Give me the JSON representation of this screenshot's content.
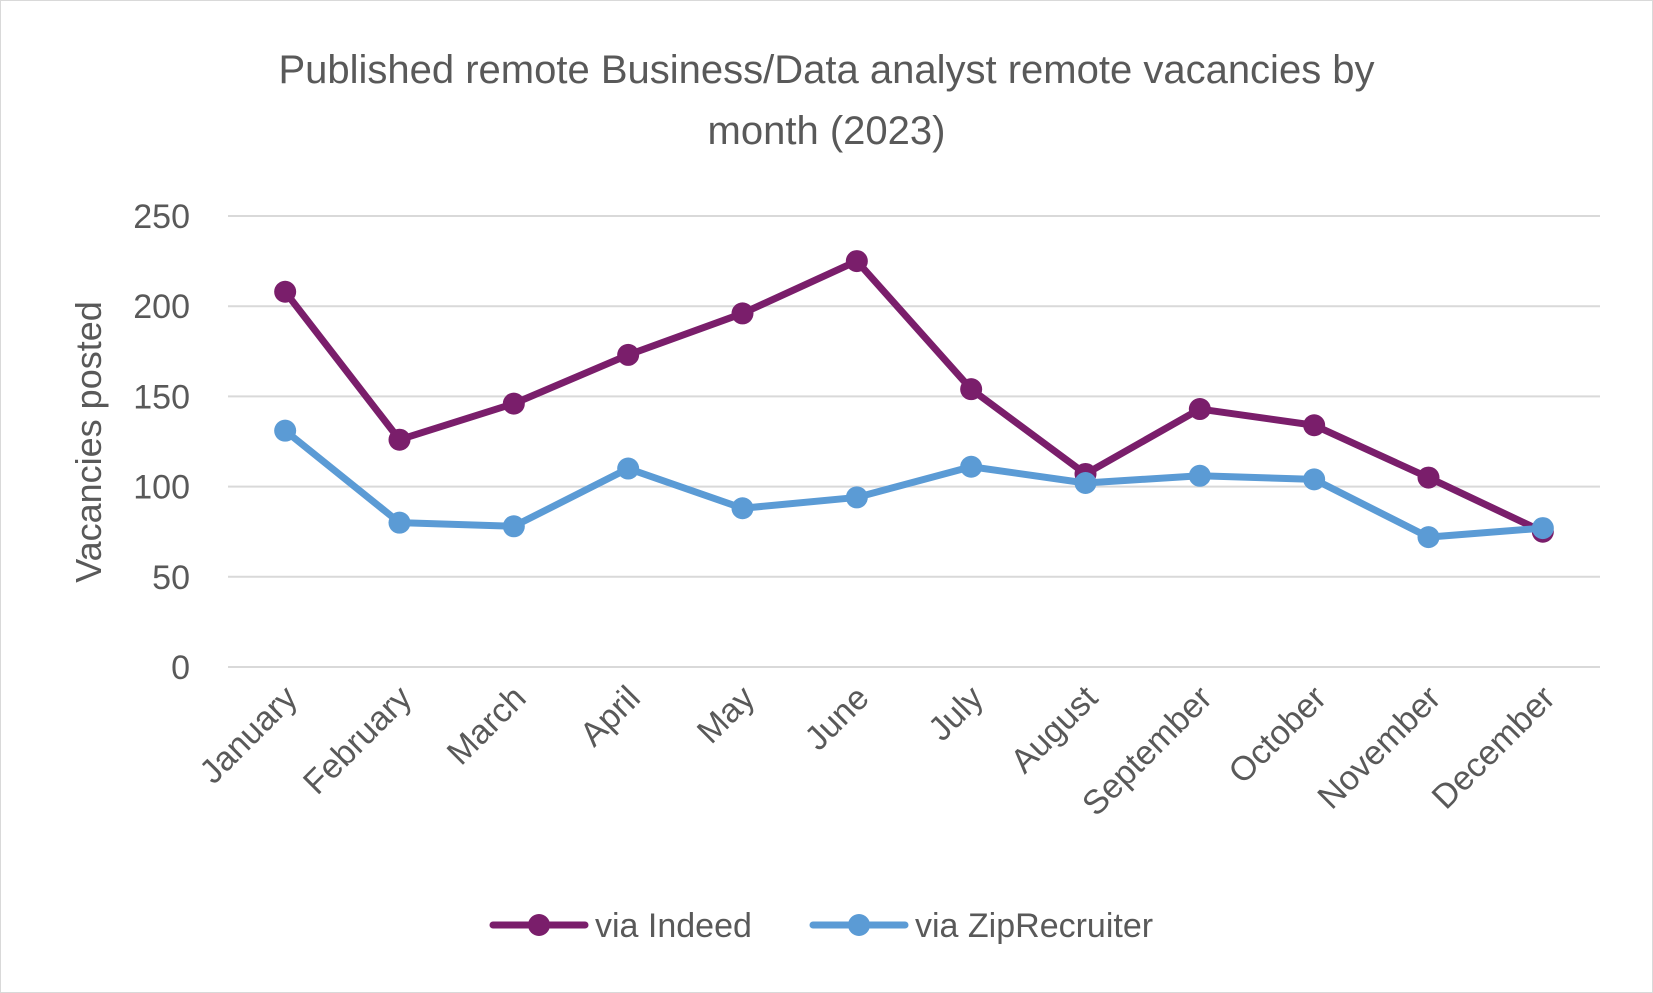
{
  "chart_data": {
    "type": "line",
    "title_line1": "Published remote Business/Data analyst remote vacancies by",
    "title_line2": "month (2023)",
    "ylabel": "Vacancies posted",
    "xlabel": "",
    "ylim": [
      0,
      250
    ],
    "yticks": [
      0,
      50,
      100,
      150,
      200,
      250
    ],
    "yticks_labels": [
      "0",
      "50",
      "100",
      "150",
      "200",
      "250"
    ],
    "grid": true,
    "legend_position": "bottom",
    "categories": [
      "January",
      "February",
      "March",
      "April",
      "May",
      "June",
      "July",
      "August",
      "September",
      "October",
      "November",
      "December"
    ],
    "series": [
      {
        "name": "via Indeed",
        "color": "#7a1e6b",
        "values": [
          208,
          126,
          146,
          173,
          196,
          225,
          154,
          107,
          143,
          134,
          105,
          75
        ]
      },
      {
        "name": "via ZipRecruiter",
        "color": "#5b9bd5",
        "values": [
          131,
          80,
          78,
          110,
          88,
          94,
          111,
          102,
          106,
          104,
          72,
          77
        ]
      }
    ]
  }
}
